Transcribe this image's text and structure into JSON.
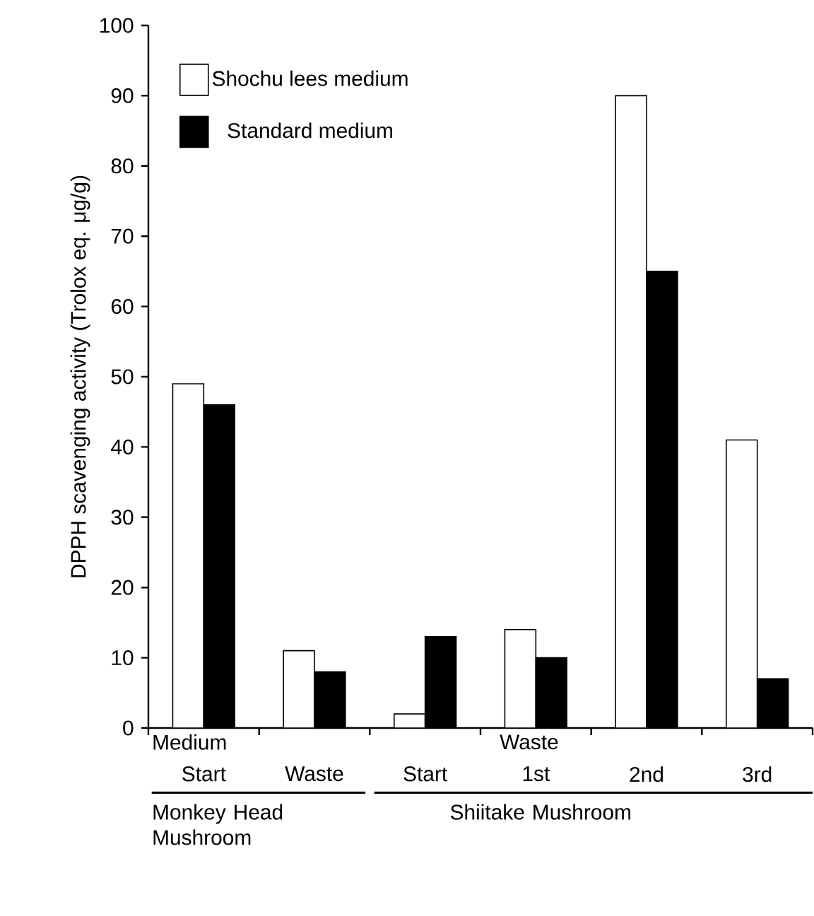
{
  "chart_data": {
    "type": "bar",
    "ylabel": "DPPH scavenging  activity (Trolox eq. μg/g)",
    "categories": [
      "Start",
      "Waste",
      "Start",
      "1st",
      "2nd",
      "3rd"
    ],
    "series": [
      {
        "name": "Shochu lees medium",
        "color": "#ffffff",
        "values": [
          49,
          11,
          2,
          14,
          90,
          41
        ]
      },
      {
        "name": "Standard medium",
        "color": "#000000",
        "values": [
          46,
          8,
          13,
          10,
          65,
          7
        ]
      }
    ],
    "ylim": [
      0,
      100
    ],
    "yticks": [
      0,
      10,
      20,
      30,
      40,
      50,
      60,
      70,
      80,
      90,
      100
    ],
    "legend": "top left",
    "grid": false,
    "annotations": [
      "Medium",
      "Waste",
      "Monkey Head Mushroom",
      "Shiitake Mushroom"
    ]
  }
}
